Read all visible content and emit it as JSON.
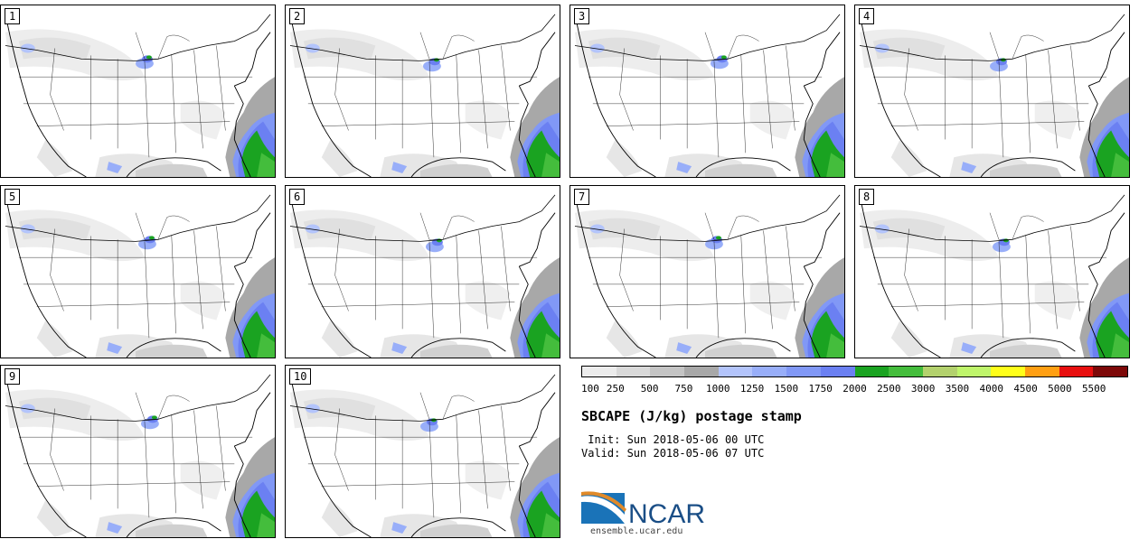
{
  "panels": [
    {
      "label": "1"
    },
    {
      "label": "2"
    },
    {
      "label": "3"
    },
    {
      "label": "4"
    },
    {
      "label": "5"
    },
    {
      "label": "6"
    },
    {
      "label": "7"
    },
    {
      "label": "8"
    },
    {
      "label": "9"
    },
    {
      "label": "10"
    }
  ],
  "colorbar": {
    "colors": [
      "#ececec",
      "#d9d9d9",
      "#c4c4c4",
      "#a8a8a8",
      "#b3c4fb",
      "#98aef9",
      "#8198f6",
      "#6b80f2",
      "#1aa321",
      "#44bd3c",
      "#b3d16d",
      "#bff56b",
      "#ffff1a",
      "#ff9f12",
      "#e80f0f",
      "#7d0808"
    ],
    "ticks": [
      "100",
      "250",
      "500",
      "750",
      "1000",
      "1250",
      "1500",
      "1750",
      "2000",
      "2500",
      "3000",
      "3500",
      "4000",
      "4500",
      "5000",
      "5500"
    ]
  },
  "title": "SBCAPE (J/kg) postage stamp",
  "init": " Init: Sun 2018-05-06 00 UTC",
  "valid": "Valid: Sun 2018-05-06 07 UTC",
  "logo_text": "NCAR",
  "url": "ensemble.ucar.edu"
}
